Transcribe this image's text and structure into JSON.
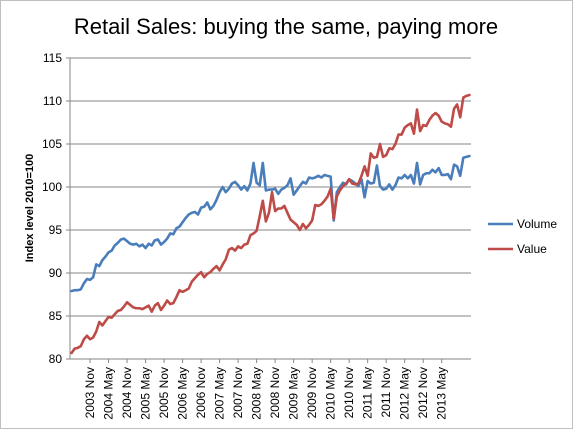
{
  "chart_data": {
    "type": "line",
    "title": "Retail Sales: buying the same, paying more",
    "ylabel": "Index level 2010=100",
    "xlabel": "",
    "ylim": [
      80,
      115
    ],
    "yticks": [
      "80",
      "85",
      "90",
      "95",
      "100",
      "105",
      "110",
      "115"
    ],
    "grid": "horizontal",
    "legend_position": "right",
    "x_start": "2003-05",
    "x_end": "2013-05",
    "x_tick_labels": [
      "2003 Nov",
      "2004 May",
      "2004 Nov",
      "2005 May",
      "2005 Nov",
      "2006 May",
      "2006 Nov",
      "2007 May",
      "2007 Nov",
      "2008 May",
      "2008 Nov",
      "2009 May",
      "2009 Nov",
      "2010 May",
      "2010 Nov",
      "2011 May",
      "2011 Nov",
      "2012 May",
      "2012 Nov",
      "2013 May"
    ],
    "series": [
      {
        "name": "Volume",
        "color": "#4a7ebb",
        "values": [
          87.9,
          88.0,
          88.0,
          88.1,
          88.8,
          89.3,
          89.2,
          89.5,
          91.0,
          90.8,
          91.5,
          91.9,
          92.4,
          92.6,
          93.2,
          93.5,
          93.9,
          94.0,
          93.7,
          93.4,
          93.3,
          93.4,
          93.1,
          93.3,
          92.9,
          93.4,
          93.2,
          93.8,
          93.9,
          93.3,
          93.6,
          94.0,
          94.6,
          94.5,
          95.2,
          95.4,
          95.9,
          96.4,
          96.8,
          97.0,
          97.1,
          96.8,
          97.6,
          97.7,
          98.2,
          97.4,
          97.8,
          98.5,
          99.4,
          100.0,
          99.4,
          99.8,
          100.4,
          100.6,
          100.2,
          99.7,
          100.1,
          99.6,
          100.4,
          102.8,
          100.5,
          100.2,
          102.8,
          99.6,
          99.7,
          99.7,
          99.8,
          99.2,
          99.7,
          99.9,
          100.2,
          101.0,
          99.1,
          99.6,
          100.1,
          100.6,
          100.4,
          101.1,
          101.0,
          101.1,
          101.3,
          101.1,
          101.4,
          101.3,
          101.2,
          96.1,
          99.4,
          100.0,
          100.5,
          100.3,
          100.9,
          100.7,
          100.4,
          100.1,
          100.9,
          98.8,
          100.7,
          100.4,
          100.5,
          102.5,
          100.1,
          99.7,
          99.8,
          100.3,
          99.7,
          100.2,
          101.1,
          101.0,
          101.4,
          101.0,
          101.4,
          100.4,
          102.8,
          100.3,
          101.4,
          101.6,
          101.6,
          102.0,
          101.7,
          102.2,
          101.4,
          101.4,
          101.5,
          100.9,
          102.6,
          102.4,
          101.3,
          103.4,
          103.5,
          103.6
        ]
      },
      {
        "name": "Value",
        "color": "#be4b48",
        "values": [
          80.7,
          81.2,
          81.3,
          81.5,
          82.3,
          82.7,
          82.3,
          82.5,
          83.2,
          84.3,
          83.9,
          84.4,
          84.9,
          84.8,
          85.2,
          85.6,
          85.7,
          86.1,
          86.6,
          86.3,
          86.0,
          85.9,
          85.9,
          85.8,
          86.0,
          86.2,
          85.5,
          86.2,
          86.5,
          85.7,
          86.2,
          86.8,
          86.4,
          86.5,
          87.2,
          88.0,
          87.8,
          88.0,
          88.2,
          89.0,
          89.4,
          89.8,
          90.1,
          89.5,
          89.9,
          90.1,
          90.5,
          90.8,
          90.3,
          91.0,
          91.6,
          92.7,
          92.9,
          92.6,
          93.1,
          92.9,
          93.3,
          93.4,
          94.4,
          94.6,
          94.9,
          96.6,
          98.4,
          96.0,
          97.0,
          99.4,
          97.2,
          97.5,
          97.5,
          97.8,
          97.0,
          96.2,
          95.9,
          95.6,
          95.0,
          95.7,
          95.2,
          95.6,
          96.1,
          97.9,
          97.8,
          98.0,
          98.4,
          98.9,
          99.8,
          96.3,
          98.9,
          99.6,
          100.1,
          100.4,
          100.9,
          100.4,
          100.3,
          100.4,
          101.3,
          102.4,
          101.3,
          103.9,
          103.4,
          103.5,
          105.0,
          103.5,
          103.7,
          104.5,
          104.4,
          105.0,
          106.1,
          106.1,
          106.9,
          107.2,
          107.4,
          106.2,
          109.0,
          106.5,
          107.2,
          107.1,
          107.8,
          108.3,
          108.6,
          108.3,
          107.6,
          107.4,
          107.3,
          107.0,
          109.1,
          109.6,
          108.1,
          110.4,
          110.6,
          110.7
        ]
      }
    ]
  }
}
